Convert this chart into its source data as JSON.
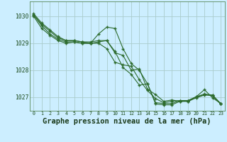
{
  "background_color": "#cceeff",
  "grid_color": "#aacccc",
  "line_color": "#2d6b2d",
  "title": "Graphe pression niveau de la mer (hPa)",
  "title_fontsize": 7.5,
  "xlim": [
    -0.5,
    23.5
  ],
  "ylim": [
    1026.5,
    1030.55
  ],
  "yticks": [
    1027,
    1028,
    1029,
    1030
  ],
  "xticks": [
    0,
    1,
    2,
    3,
    4,
    5,
    6,
    7,
    8,
    9,
    10,
    11,
    12,
    13,
    14,
    15,
    16,
    17,
    18,
    19,
    20,
    21,
    22,
    23
  ],
  "series": [
    [
      1030.1,
      1029.75,
      1029.5,
      1029.25,
      1029.1,
      1029.1,
      1029.05,
      1029.0,
      1029.35,
      1029.6,
      1029.55,
      1028.8,
      1028.25,
      1028.0,
      1027.5,
      1026.75,
      1026.72,
      1026.72,
      1026.85,
      1026.85,
      1027.0,
      1027.1,
      1027.05,
      1026.75
    ],
    [
      1030.05,
      1029.7,
      1029.45,
      1029.2,
      1029.1,
      1029.1,
      1029.05,
      1029.05,
      1029.1,
      1029.1,
      1028.65,
      1028.55,
      1028.0,
      1028.05,
      1027.3,
      1027.1,
      1026.85,
      1026.9,
      1026.85,
      1026.85,
      1026.98,
      1027.08,
      1027.08,
      1026.75
    ],
    [
      1030.05,
      1029.65,
      1029.35,
      1029.15,
      1029.05,
      1029.05,
      1029.0,
      1029.0,
      1029.05,
      1029.1,
      1028.7,
      1028.1,
      1027.85,
      1027.45,
      1027.5,
      1026.8,
      1026.77,
      1026.77,
      1026.88,
      1026.88,
      1027.02,
      1027.12,
      1027.08,
      1026.77
    ],
    [
      1030.0,
      1029.55,
      1029.3,
      1029.1,
      1029.0,
      1029.05,
      1029.0,
      1029.0,
      1029.0,
      1028.8,
      1028.3,
      1028.2,
      1028.15,
      1027.65,
      1027.25,
      1026.95,
      1026.8,
      1026.85,
      1026.88,
      1026.88,
      1027.02,
      1027.28,
      1026.98,
      1026.77
    ]
  ]
}
